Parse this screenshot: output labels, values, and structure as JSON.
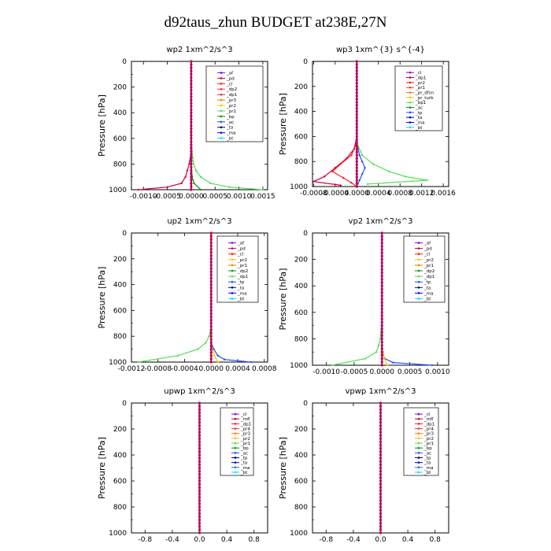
{
  "title": "d92taus_zhun  BUDGET at238E,27N",
  "chart_data": [
    {
      "type": "line",
      "title": "wp2   1xm^2/s^3",
      "ylabel": "Pressure  [hPa]",
      "xlim": [
        -0.00125,
        0.0016
      ],
      "ylim": [
        1000,
        0
      ],
      "xticks": [
        -0.001,
        -0.0005,
        0.0,
        0.0005,
        0.001,
        0.0015
      ],
      "xtick_labels": [
        "-0.0010",
        "-0.0005",
        "0.0000",
        "0.0005",
        "0.0010",
        "0.0015"
      ],
      "yticks": [
        0,
        200,
        400,
        600,
        800,
        1000
      ],
      "legend": [
        "_af",
        "_pd",
        "_cl",
        "_dp2",
        "_dp1",
        "_pr3",
        "_pr2",
        "_pr1",
        "_bp",
        "_ac",
        "_ta",
        "_ma",
        "_bt"
      ],
      "colors": [
        "#7f00ff",
        "#cc0033",
        "#ff1a1a",
        "#ff3333",
        "#e8203c",
        "#ff7f00",
        "#ffc000",
        "#50e050",
        "#009900",
        "#1f4fff",
        "#000080",
        "#0000ff",
        "#00e0ff"
      ],
      "series": [
        {
          "name": "_af",
          "p": [
            0,
            200,
            400,
            600,
            800,
            900,
            960,
            1000
          ],
          "x": [
            0,
            0,
            0,
            0,
            0,
            0,
            0,
            0
          ]
        },
        {
          "name": "_pd",
          "p": [
            0,
            400,
            700,
            800,
            850,
            900,
            950,
            980,
            1000
          ],
          "x": [
            0,
            0,
            0,
            -4e-05,
            -8e-05,
            -0.00012,
            -0.0002,
            -0.0005,
            -0.0011
          ]
        },
        {
          "name": "_pr1",
          "p": [
            0,
            400,
            650,
            750,
            800,
            850,
            900,
            950,
            980,
            1000
          ],
          "x": [
            0,
            0,
            1e-05,
            3e-05,
            5e-05,
            0.0001,
            0.0002,
            0.0004,
            0.0008,
            0.0015
          ]
        },
        {
          "name": "_bp",
          "p": [
            0,
            800,
            900,
            950,
            1000
          ],
          "x": [
            0,
            0,
            2e-05,
            6e-05,
            0.0002
          ]
        }
      ]
    },
    {
      "type": "line",
      "title": "wp3   1xm^{3} s^{-4}",
      "ylabel": "Pressure  [hPa]",
      "xlim": [
        -0.00082,
        0.0017
      ],
      "ylim": [
        1000,
        0
      ],
      "xticks": [
        -0.0008,
        -0.0004,
        0.0,
        0.0004,
        0.0008,
        0.0012,
        0.0016
      ],
      "xtick_labels": [
        "-0.0008",
        "-0.0004",
        "0.0000",
        "0.0004",
        "0.0008",
        "0.0012",
        "0.0016"
      ],
      "yticks": [
        0,
        200,
        400,
        600,
        800,
        1000
      ],
      "legend": [
        "_cl",
        "_dp1",
        "_pr2",
        "_pr1",
        "_pr_dfsn",
        "_pr_turb",
        "_bp1",
        "_ac",
        "_tp",
        "_ta",
        "_ma",
        "_bt"
      ],
      "colors": [
        "#7f00ff",
        "#cc0033",
        "#ff1a1a",
        "#ff3333",
        "#ff7f00",
        "#ffc000",
        "#50e050",
        "#009900",
        "#1f4fff",
        "#000080",
        "#0000ff",
        "#00e0ff"
      ],
      "series": [
        {
          "name": "_cl",
          "p": [
            0,
            200,
            400,
            600,
            800,
            1000
          ],
          "x": [
            0,
            0,
            0,
            0,
            0,
            0
          ]
        },
        {
          "name": "_dp1",
          "p": [
            600,
            700,
            780,
            850,
            920,
            960,
            990
          ],
          "x": [
            0,
            -5e-05,
            -0.0002,
            -0.0004,
            -0.0006,
            -0.0008,
            -0.0003
          ]
        },
        {
          "name": "_pr2",
          "p": [
            650,
            750,
            820,
            880,
            930,
            970,
            1000
          ],
          "x": [
            0,
            -0.0001,
            -0.0003,
            -0.00045,
            -0.00025,
            -0.0001,
            0
          ]
        },
        {
          "name": "_bp1",
          "p": [
            650,
            750,
            820,
            880,
            920,
            950,
            980
          ],
          "x": [
            0,
            0.0001,
            0.0003,
            0.0006,
            0.0009,
            0.0013,
            0.0002
          ]
        },
        {
          "name": "_tp",
          "p": [
            650,
            750,
            800,
            850,
            900,
            950,
            1000
          ],
          "x": [
            0,
            5e-05,
            0.0001,
            0.00015,
            0.0001,
            5e-05,
            0
          ]
        }
      ]
    },
    {
      "type": "line",
      "title": "up2   1xm^2/s^3",
      "ylabel": "Pressure  [hPa]",
      "xlim": [
        -0.0012,
        0.00085
      ],
      "ylim": [
        1000,
        0
      ],
      "xticks": [
        -0.0012,
        -0.0008,
        -0.0004,
        0.0,
        0.0004,
        0.0008
      ],
      "xtick_labels": [
        "-0.0012",
        "-0.0008",
        "-0.0004",
        "0.0000",
        "0.0004",
        "0.0008"
      ],
      "yticks": [
        0,
        200,
        400,
        600,
        800,
        1000
      ],
      "legend": [
        "_af",
        "_pd",
        "_cl",
        "_pr2",
        "_pr1",
        "_dp2",
        "_dp1",
        "_tp",
        "_ta",
        "_ma",
        "_bt"
      ],
      "colors": [
        "#7f00ff",
        "#cc0033",
        "#ff1a1a",
        "#ffc000",
        "#ff7f00",
        "#009900",
        "#50e050",
        "#1f4fff",
        "#000080",
        "#0000ff",
        "#00e0ff"
      ],
      "series": [
        {
          "name": "_af",
          "p": [
            0,
            200,
            400,
            600,
            800,
            1000
          ],
          "x": [
            0,
            0,
            0,
            0,
            0,
            0
          ]
        },
        {
          "name": "_dp1",
          "p": [
            750,
            800,
            850,
            900,
            950,
            1000
          ],
          "x": [
            -1e-05,
            -3e-05,
            -8e-05,
            -0.0002,
            -0.0005,
            -0.0011
          ]
        },
        {
          "name": "_tp",
          "p": [
            850,
            900,
            950,
            980,
            1000
          ],
          "x": [
            0,
            4e-05,
            0.0001,
            0.0002,
            0.0006
          ]
        },
        {
          "name": "_pr2",
          "p": [
            850,
            900,
            950,
            1000
          ],
          "x": [
            0,
            2e-05,
            5e-05,
            0.0001
          ]
        }
      ]
    },
    {
      "type": "line",
      "title": "vp2   1xm^2/s^3",
      "ylabel": "Pressure  [hPa]",
      "xlim": [
        -0.00125,
        0.0012
      ],
      "ylim": [
        1000,
        0
      ],
      "xticks": [
        -0.001,
        -0.0005,
        0.0,
        0.0005,
        0.001
      ],
      "xtick_labels": [
        "-0.0010",
        "-0.0005",
        "0.0000",
        "0.0005",
        "0.0010"
      ],
      "yticks": [
        0,
        200,
        400,
        600,
        800,
        1000
      ],
      "legend": [
        "_af",
        "_pd",
        "_cl",
        "_pr2",
        "_pr1",
        "_dp2",
        "_dp1",
        "_tp",
        "_ta",
        "_ma",
        "_bt"
      ],
      "colors": [
        "#7f00ff",
        "#cc0033",
        "#ff1a1a",
        "#ffc000",
        "#ff7f00",
        "#009900",
        "#50e050",
        "#1f4fff",
        "#000080",
        "#0000ff",
        "#00e0ff"
      ],
      "series": [
        {
          "name": "_af",
          "p": [
            0,
            200,
            400,
            600,
            800,
            1000
          ],
          "x": [
            0,
            0,
            0,
            0,
            0,
            0
          ]
        },
        {
          "name": "_dp1",
          "p": [
            700,
            800,
            850,
            900,
            950,
            1000
          ],
          "x": [
            -1e-05,
            -3e-05,
            -6e-05,
            -0.0001,
            -0.0003,
            -0.0009
          ]
        },
        {
          "name": "_tp",
          "p": [
            900,
            950,
            980,
            1000
          ],
          "x": [
            0,
            5e-05,
            0.0002,
            0.0009
          ]
        },
        {
          "name": "_pr2",
          "p": [
            850,
            900,
            950,
            1000
          ],
          "x": [
            0,
            2e-05,
            4e-05,
            0.0001
          ]
        }
      ]
    },
    {
      "type": "line",
      "title": "upwp   1xm^2/s^3",
      "ylabel": "Pressure  [hPa]",
      "xlim": [
        -1.0,
        1.0
      ],
      "ylim": [
        1000,
        0
      ],
      "xticks": [
        -0.8,
        -0.4,
        0.0,
        0.4,
        0.8
      ],
      "xtick_labels": [
        "-0.8",
        "-0.4",
        "0.0",
        "0.4",
        "0.8"
      ],
      "yticks": [
        0,
        200,
        400,
        600,
        800,
        1000
      ],
      "legend": [
        "_cl",
        "_mfl",
        "_dp1",
        "_pr4",
        "_pr3",
        "_pr2",
        "_pr1",
        "_bp",
        "_ac",
        "_tp",
        "_ta",
        "_ma",
        "_bt"
      ],
      "colors": [
        "#7f00ff",
        "#cc0033",
        "#ff1a1a",
        "#ff3333",
        "#ff7f00",
        "#ffc000",
        "#50e050",
        "#009900",
        "#1f4fff",
        "#000080",
        "#0000ff",
        "#3060ff",
        "#00e0ff"
      ],
      "series": [
        {
          "name": "_cl",
          "p": [
            0,
            200,
            400,
            600,
            800,
            1000
          ],
          "x": [
            0,
            0,
            0,
            0,
            0,
            0
          ]
        }
      ]
    },
    {
      "type": "line",
      "title": "vpwp   1xm^2/s^3",
      "ylabel": "Pressure  [hPa]",
      "xlim": [
        -1.0,
        1.0
      ],
      "ylim": [
        1000,
        0
      ],
      "xticks": [
        -0.8,
        -0.4,
        0.0,
        0.4,
        0.8
      ],
      "xtick_labels": [
        "-0.8",
        "-0.4",
        "0.0",
        "0.4",
        "0.8"
      ],
      "yticks": [
        0,
        200,
        400,
        600,
        800,
        1000
      ],
      "legend": [
        "_cl",
        "_mfl",
        "_dp1",
        "_pr4",
        "_pr3",
        "_pr2",
        "_pr1",
        "_bp",
        "_ac",
        "_tp",
        "_ta",
        "_ma",
        "_bt"
      ],
      "colors": [
        "#7f00ff",
        "#cc0033",
        "#ff1a1a",
        "#ff3333",
        "#ff7f00",
        "#ffc000",
        "#50e050",
        "#009900",
        "#1f4fff",
        "#000080",
        "#0000ff",
        "#3060ff",
        "#00e0ff"
      ],
      "series": [
        {
          "name": "_cl",
          "p": [
            0,
            200,
            400,
            600,
            800,
            1000
          ],
          "x": [
            0,
            0,
            0,
            0,
            0,
            0
          ]
        }
      ]
    }
  ]
}
